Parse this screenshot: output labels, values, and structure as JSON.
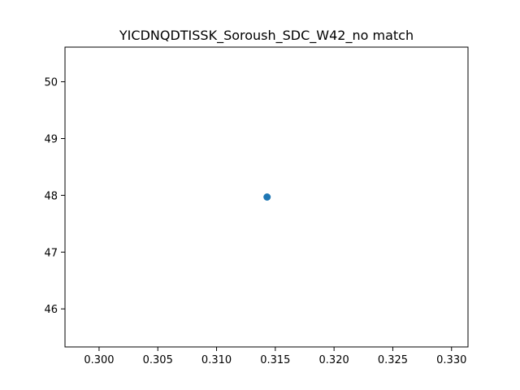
{
  "chart_data": {
    "type": "scatter",
    "title": "YICDNQDTISSK_Soroush_SDC_W42_no match",
    "xlabel": "",
    "ylabel": "",
    "xlim": [
      0.2971,
      0.3314
    ],
    "ylim": [
      45.33,
      50.61
    ],
    "x_ticks": [
      0.3,
      0.305,
      0.31,
      0.315,
      0.32,
      0.325,
      0.33
    ],
    "x_tick_labels": [
      "0.300",
      "0.305",
      "0.310",
      "0.315",
      "0.320",
      "0.325",
      "0.330"
    ],
    "y_ticks": [
      46,
      47,
      48,
      49,
      50
    ],
    "y_tick_labels": [
      "46",
      "47",
      "48",
      "49",
      "50"
    ],
    "grid": false,
    "legend": "none",
    "series": [
      {
        "color": "#1f77b4",
        "points": [
          {
            "x": 0.3143,
            "y": 47.97
          }
        ]
      }
    ]
  }
}
